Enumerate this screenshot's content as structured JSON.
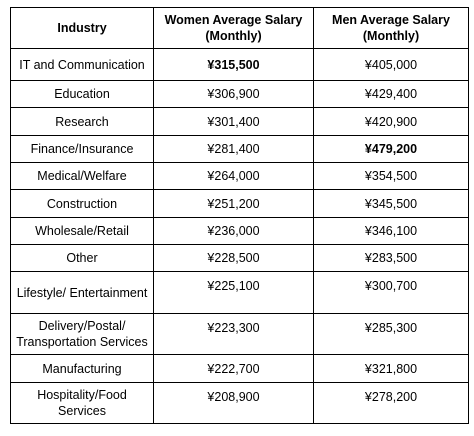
{
  "table": {
    "headers": [
      "Industry",
      "Women Average Salary (Monthly)",
      "Men Average Salary (Monthly)"
    ],
    "rows": [
      {
        "industry": "IT and Communication",
        "women": "¥315,500",
        "men": "¥405,000",
        "women_bold": true,
        "men_bold": false
      },
      {
        "industry": "Education",
        "women": "¥306,900",
        "men": "¥429,400",
        "women_bold": false,
        "men_bold": false
      },
      {
        "industry": "Research",
        "women": "¥301,400",
        "men": "¥420,900",
        "women_bold": false,
        "men_bold": false
      },
      {
        "industry": "Finance/Insurance",
        "women": "¥281,400",
        "men": "¥479,200",
        "women_bold": false,
        "men_bold": true
      },
      {
        "industry": "Medical/Welfare",
        "women": "¥264,000",
        "men": "¥354,500",
        "women_bold": false,
        "men_bold": false
      },
      {
        "industry": "Construction",
        "women": "¥251,200",
        "men": "¥345,500",
        "women_bold": false,
        "men_bold": false
      },
      {
        "industry": "Wholesale/Retail",
        "women": "¥236,000",
        "men": "¥346,100",
        "women_bold": false,
        "men_bold": false
      },
      {
        "industry": "Other",
        "women": "¥228,500",
        "men": "¥283,500",
        "women_bold": false,
        "men_bold": false
      },
      {
        "industry": "Lifestyle/ Entertainment",
        "women": "¥225,100",
        "men": "¥300,700",
        "women_bold": false,
        "men_bold": false
      },
      {
        "industry": "Delivery/Postal/ Transportation Services",
        "women": "¥223,300",
        "men": "¥285,300",
        "women_bold": false,
        "men_bold": false
      },
      {
        "industry": "Manufacturing",
        "women": "¥222,700",
        "men": "¥321,800",
        "women_bold": false,
        "men_bold": false
      },
      {
        "industry": "Hospitality/Food Services",
        "women": "¥208,900",
        "men": "¥278,200",
        "women_bold": false,
        "men_bold": false
      }
    ]
  }
}
